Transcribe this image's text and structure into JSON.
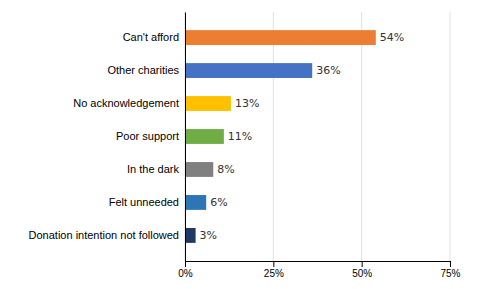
{
  "chart_data": {
    "type": "bar",
    "orientation": "horizontal",
    "categories": [
      "Donation intention not followed",
      "Felt unneeded",
      "In the dark",
      "Poor support",
      "No acknowledgement",
      "Other charities",
      "Can't afford"
    ],
    "values": [
      3,
      6,
      8,
      11,
      13,
      36,
      54
    ],
    "value_labels": [
      "3%",
      "6%",
      "8%",
      "11%",
      "13%",
      "36%",
      "54%"
    ],
    "colors": [
      "#1f3864",
      "#2e75b6",
      "#808080",
      "#70ad47",
      "#ffc000",
      "#4472c4",
      "#ed7d31"
    ],
    "xlim": [
      0,
      75
    ],
    "xticks": [
      {
        "value": 0,
        "label": "0%"
      },
      {
        "value": 25,
        "label": "25%"
      },
      {
        "value": 50,
        "label": "50%"
      },
      {
        "value": 75,
        "label": "75%"
      }
    ],
    "grid": true,
    "data_labels": true
  }
}
